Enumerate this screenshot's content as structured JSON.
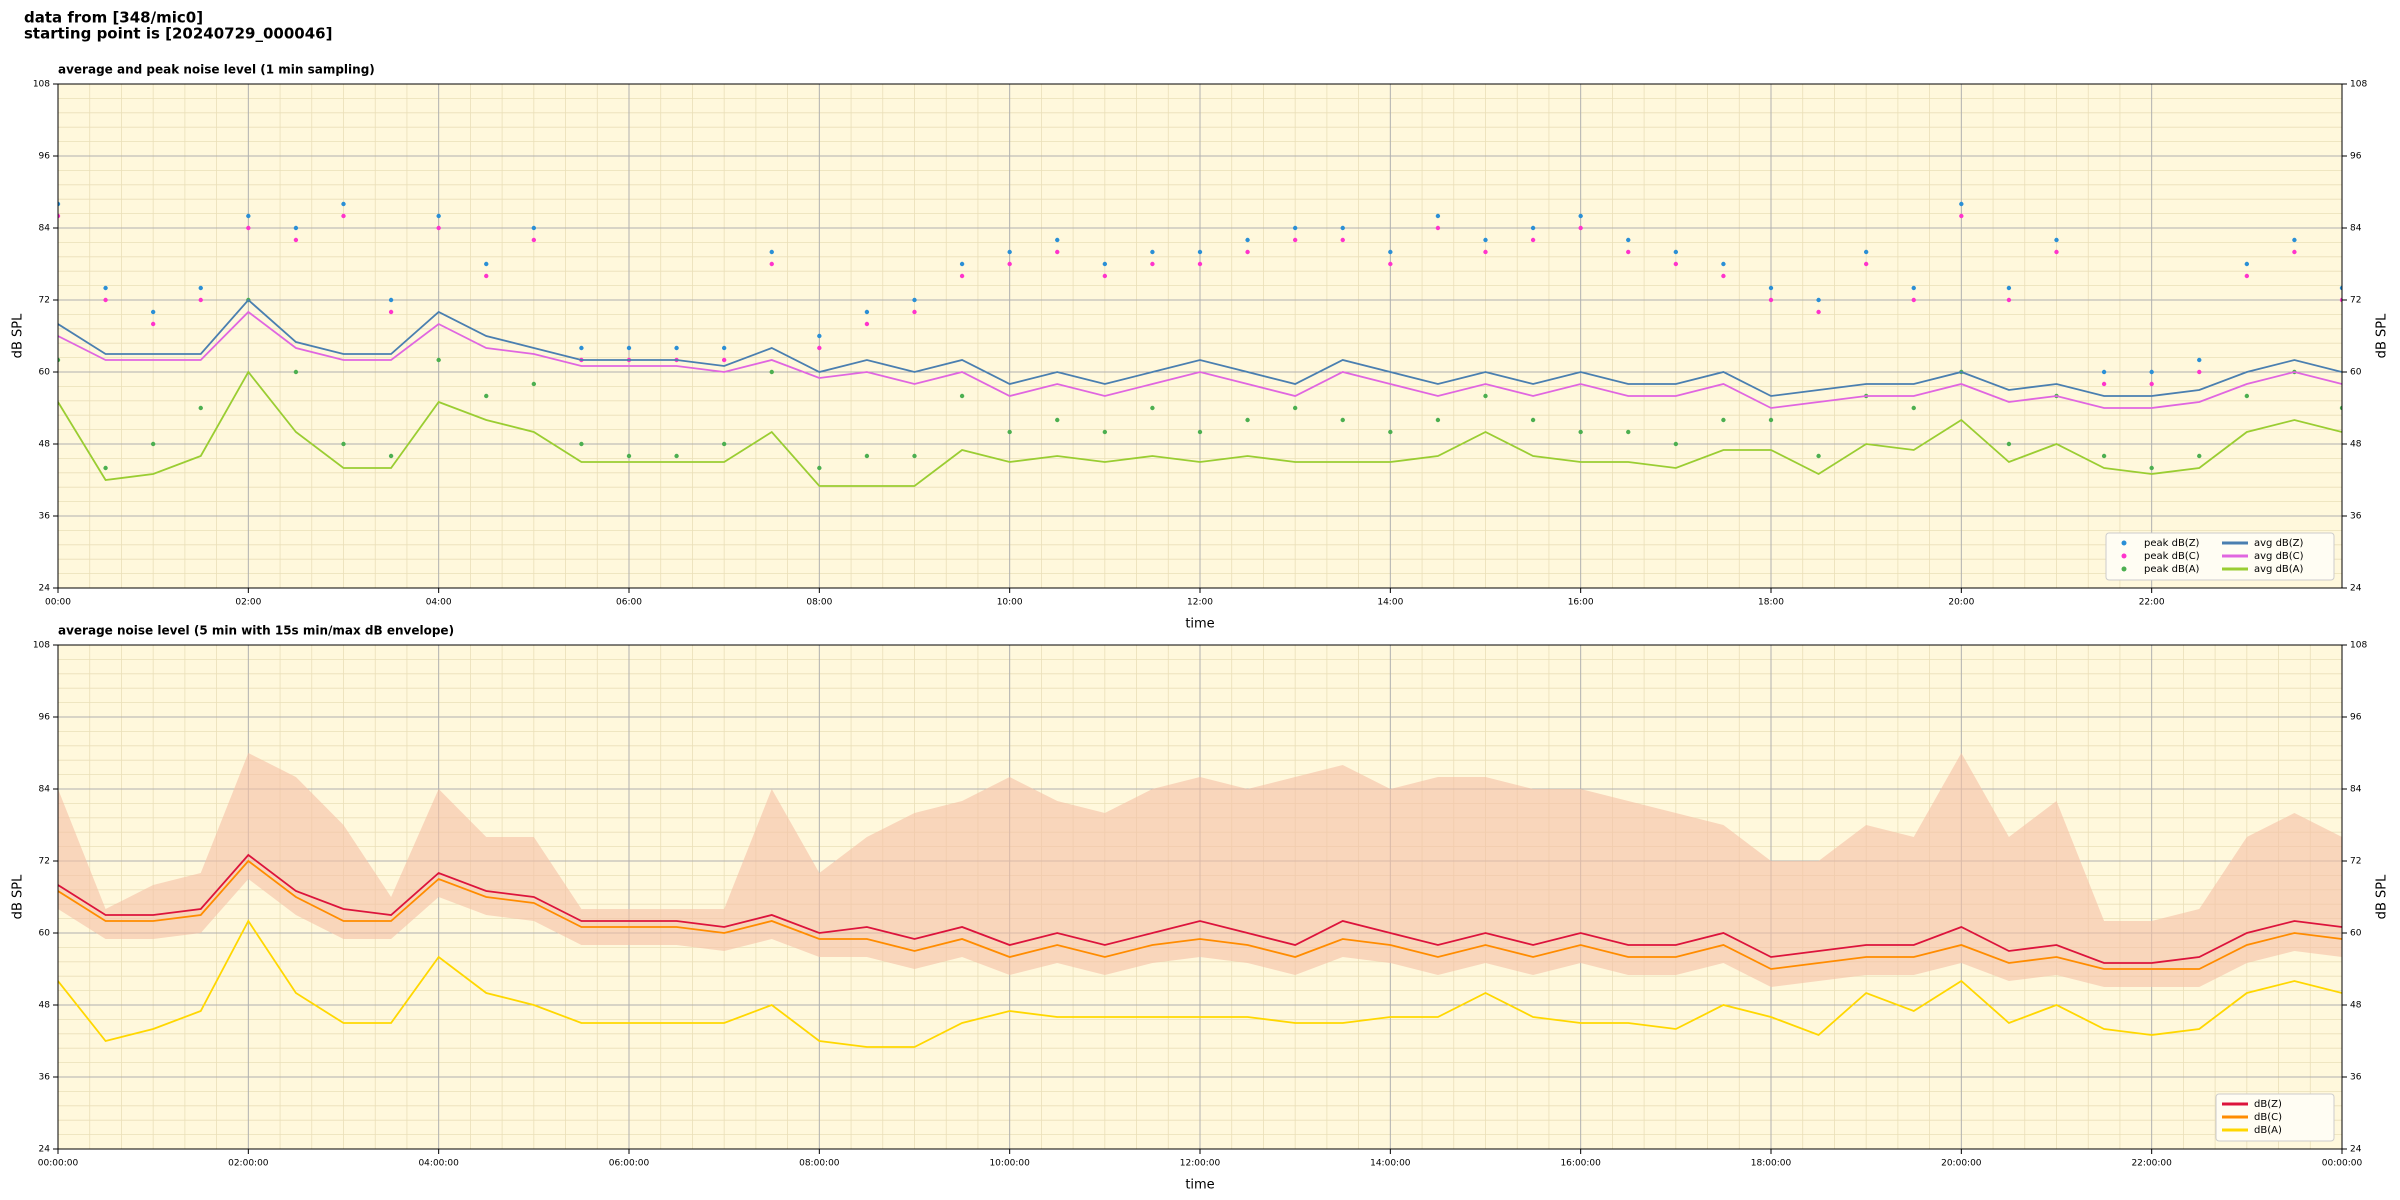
{
  "header": [
    "data from [348/mic0]",
    "starting point is [20240729_000046]"
  ],
  "chart_data": [
    {
      "type": "line",
      "title": "average and peak noise level (1 min sampling)",
      "xlabel": "time",
      "ylabel": "dB SPL",
      "xlim": [
        0,
        24
      ],
      "ylim": [
        24,
        108
      ],
      "yticks": [
        24,
        36,
        48,
        60,
        72,
        84,
        96,
        108
      ],
      "xticks": [
        {
          "value": 0,
          "label": "00:00"
        },
        {
          "value": 2,
          "label": "02:00"
        },
        {
          "value": 4,
          "label": "04:00"
        },
        {
          "value": 6,
          "label": "06:00"
        },
        {
          "value": 8,
          "label": "08:00"
        },
        {
          "value": 10,
          "label": "10:00"
        },
        {
          "value": 12,
          "label": "12:00"
        },
        {
          "value": 14,
          "label": "14:00"
        },
        {
          "value": 16,
          "label": "16:00"
        },
        {
          "value": 18,
          "label": "18:00"
        },
        {
          "value": 20,
          "label": "20:00"
        },
        {
          "value": 22,
          "label": "22:00"
        }
      ],
      "grid": true,
      "legend": "lower right",
      "legend_columns": 2,
      "background": "#fff8dc",
      "x": [
        0,
        0.5,
        1,
        1.5,
        2,
        2.5,
        3,
        3.5,
        4,
        4.5,
        5,
        5.5,
        6,
        6.5,
        7,
        7.5,
        8,
        8.5,
        9,
        9.5,
        10,
        10.5,
        11,
        11.5,
        12,
        12.5,
        13,
        13.5,
        14,
        14.5,
        15,
        15.5,
        16,
        16.5,
        17,
        17.5,
        18,
        18.5,
        19,
        19.5,
        20,
        20.5,
        21,
        21.5,
        22,
        22.5,
        23,
        23.5,
        24
      ],
      "series": [
        {
          "name": "peak dB(Z)",
          "kind": "scatter",
          "color": "#2a8fd6",
          "values": [
            88,
            74,
            70,
            74,
            86,
            84,
            88,
            72,
            86,
            78,
            84,
            64,
            64,
            64,
            64,
            80,
            66,
            70,
            72,
            78,
            80,
            82,
            78,
            80,
            80,
            82,
            84,
            84,
            80,
            86,
            82,
            84,
            86,
            82,
            80,
            78,
            74,
            72,
            80,
            74,
            88,
            74,
            82,
            60,
            60,
            62,
            78,
            82,
            74
          ]
        },
        {
          "name": "peak dB(C)",
          "kind": "scatter",
          "color": "#ff33cc",
          "values": [
            86,
            72,
            68,
            72,
            84,
            82,
            86,
            70,
            84,
            76,
            82,
            62,
            62,
            62,
            62,
            78,
            64,
            68,
            70,
            76,
            78,
            80,
            76,
            78,
            78,
            80,
            82,
            82,
            78,
            84,
            80,
            82,
            84,
            80,
            78,
            76,
            72,
            70,
            78,
            72,
            86,
            72,
            80,
            58,
            58,
            60,
            76,
            80,
            72
          ]
        },
        {
          "name": "peak dB(A)",
          "kind": "scatter",
          "color": "#4caf50",
          "values": [
            62,
            44,
            48,
            54,
            72,
            60,
            48,
            46,
            62,
            56,
            58,
            48,
            46,
            46,
            48,
            60,
            44,
            46,
            46,
            56,
            50,
            52,
            50,
            54,
            50,
            52,
            54,
            52,
            50,
            52,
            56,
            52,
            50,
            50,
            48,
            52,
            52,
            46,
            56,
            54,
            60,
            48,
            56,
            46,
            44,
            46,
            56,
            60,
            54
          ]
        },
        {
          "name": "avg dB(Z)",
          "kind": "line",
          "color": "#4a7fb0",
          "values": [
            68,
            63,
            63,
            63,
            72,
            65,
            63,
            63,
            70,
            66,
            64,
            62,
            62,
            62,
            61,
            64,
            60,
            62,
            60,
            62,
            58,
            60,
            58,
            60,
            62,
            60,
            58,
            62,
            60,
            58,
            60,
            58,
            60,
            58,
            58,
            60,
            56,
            57,
            58,
            58,
            60,
            57,
            58,
            56,
            56,
            57,
            60,
            62,
            60
          ]
        },
        {
          "name": "avg dB(C)",
          "kind": "line",
          "color": "#e066e0",
          "values": [
            66,
            62,
            62,
            62,
            70,
            64,
            62,
            62,
            68,
            64,
            63,
            61,
            61,
            61,
            60,
            62,
            59,
            60,
            58,
            60,
            56,
            58,
            56,
            58,
            60,
            58,
            56,
            60,
            58,
            56,
            58,
            56,
            58,
            56,
            56,
            58,
            54,
            55,
            56,
            56,
            58,
            55,
            56,
            54,
            54,
            55,
            58,
            60,
            58
          ]
        },
        {
          "name": "avg dB(A)",
          "kind": "line",
          "color": "#9acd32",
          "values": [
            55,
            42,
            43,
            46,
            60,
            50,
            44,
            44,
            55,
            52,
            50,
            45,
            45,
            45,
            45,
            50,
            41,
            41,
            41,
            47,
            45,
            46,
            45,
            46,
            45,
            46,
            45,
            45,
            45,
            46,
            50,
            46,
            45,
            45,
            44,
            47,
            47,
            43,
            48,
            47,
            52,
            45,
            48,
            44,
            43,
            44,
            50,
            52,
            50
          ]
        }
      ]
    },
    {
      "type": "line",
      "title": "average noise level (5 min with 15s min/max dB envelope)",
      "xlabel": "time",
      "ylabel": "dB SPL",
      "xlim": [
        0,
        24
      ],
      "ylim": [
        24,
        108
      ],
      "yticks": [
        24,
        36,
        48,
        60,
        72,
        84,
        96,
        108
      ],
      "xticks": [
        {
          "value": 0,
          "label": "00:00:00"
        },
        {
          "value": 2,
          "label": "02:00:00"
        },
        {
          "value": 4,
          "label": "04:00:00"
        },
        {
          "value": 6,
          "label": "06:00:00"
        },
        {
          "value": 8,
          "label": "08:00:00"
        },
        {
          "value": 10,
          "label": "10:00:00"
        },
        {
          "value": 12,
          "label": "12:00:00"
        },
        {
          "value": 14,
          "label": "14:00:00"
        },
        {
          "value": 16,
          "label": "16:00:00"
        },
        {
          "value": 18,
          "label": "18:00:00"
        },
        {
          "value": 20,
          "label": "20:00:00"
        },
        {
          "value": 22,
          "label": "22:00:00"
        },
        {
          "value": 24,
          "label": "00:00:00"
        }
      ],
      "grid": true,
      "legend": "lower right",
      "legend_columns": 1,
      "background": "#fff8dc",
      "x": [
        0,
        0.5,
        1,
        1.5,
        2,
        2.5,
        3,
        3.5,
        4,
        4.5,
        5,
        5.5,
        6,
        6.5,
        7,
        7.5,
        8,
        8.5,
        9,
        9.5,
        10,
        10.5,
        11,
        11.5,
        12,
        12.5,
        13,
        13.5,
        14,
        14.5,
        15,
        15.5,
        16,
        16.5,
        17,
        17.5,
        18,
        18.5,
        19,
        19.5,
        20,
        20.5,
        21,
        21.5,
        22,
        22.5,
        23,
        23.5,
        24
      ],
      "envelope": {
        "color": "#f5bfa5",
        "high": [
          84,
          64,
          68,
          70,
          90,
          86,
          78,
          66,
          84,
          76,
          76,
          64,
          64,
          64,
          64,
          84,
          70,
          76,
          80,
          82,
          86,
          82,
          80,
          84,
          86,
          84,
          86,
          88,
          84,
          86,
          86,
          84,
          84,
          82,
          80,
          78,
          72,
          72,
          78,
          76,
          90,
          76,
          82,
          62,
          62,
          64,
          76,
          80,
          76
        ],
        "low": [
          64,
          59,
          59,
          60,
          69,
          63,
          59,
          59,
          66,
          63,
          62,
          58,
          58,
          58,
          57,
          59,
          56,
          56,
          54,
          56,
          53,
          55,
          53,
          55,
          56,
          55,
          53,
          56,
          55,
          53,
          55,
          53,
          55,
          53,
          53,
          55,
          51,
          52,
          53,
          53,
          55,
          52,
          53,
          51,
          51,
          51,
          55,
          57,
          56
        ]
      },
      "series": [
        {
          "name": "dB(Z)",
          "kind": "line",
          "color": "#dc143c",
          "values": [
            68,
            63,
            63,
            64,
            73,
            67,
            64,
            63,
            70,
            67,
            66,
            62,
            62,
            62,
            61,
            63,
            60,
            61,
            59,
            61,
            58,
            60,
            58,
            60,
            62,
            60,
            58,
            62,
            60,
            58,
            60,
            58,
            60,
            58,
            58,
            60,
            56,
            57,
            58,
            58,
            61,
            57,
            58,
            55,
            55,
            56,
            60,
            62,
            61
          ]
        },
        {
          "name": "dB(C)",
          "kind": "line",
          "color": "#ff8c00",
          "values": [
            67,
            62,
            62,
            63,
            72,
            66,
            62,
            62,
            69,
            66,
            65,
            61,
            61,
            61,
            60,
            62,
            59,
            59,
            57,
            59,
            56,
            58,
            56,
            58,
            59,
            58,
            56,
            59,
            58,
            56,
            58,
            56,
            58,
            56,
            56,
            58,
            54,
            55,
            56,
            56,
            58,
            55,
            56,
            54,
            54,
            54,
            58,
            60,
            59
          ]
        },
        {
          "name": "dB(A)",
          "kind": "line",
          "color": "#ffd700",
          "values": [
            52,
            42,
            44,
            47,
            62,
            50,
            45,
            45,
            56,
            50,
            48,
            45,
            45,
            45,
            45,
            48,
            42,
            41,
            41,
            45,
            47,
            46,
            46,
            46,
            46,
            46,
            45,
            45,
            46,
            46,
            50,
            46,
            45,
            45,
            44,
            48,
            46,
            43,
            50,
            47,
            52,
            45,
            48,
            44,
            43,
            44,
            50,
            52,
            50
          ]
        }
      ]
    }
  ]
}
